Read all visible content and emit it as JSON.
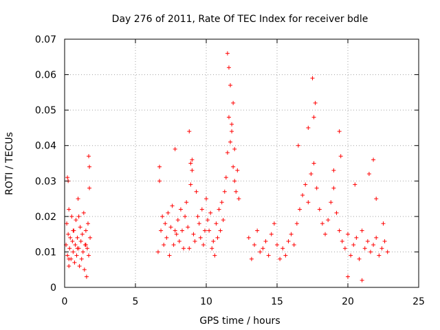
{
  "chart_data": {
    "type": "scatter",
    "title": "Day 276 of 2011, Rate Of TEC Index for receiver bdle",
    "xlabel": "GPS time / hours",
    "ylabel": "ROTI / TECUs",
    "xlim": [
      0,
      25
    ],
    "ylim": [
      0,
      0.07
    ],
    "xticks": [
      "0",
      "5",
      "10",
      "15",
      "20",
      "25"
    ],
    "yticks": [
      "0",
      "0.01",
      "0.02",
      "0.03",
      "0.04",
      "0.05",
      "0.06",
      "0.07"
    ],
    "grid": true,
    "marker": "+",
    "marker_color": "#ff0000",
    "series": [
      {
        "values_note": "",
        "x": [
          0.1,
          0.15,
          0.2,
          0.2,
          0.25,
          0.3,
          0.3,
          0.35,
          0.4,
          0.45,
          0.5,
          0.55,
          0.6,
          0.65,
          0.7,
          0.75,
          0.8,
          0.85,
          0.9,
          0.95,
          1.0,
          1.05,
          1.1,
          1.15,
          1.2,
          1.25,
          1.3,
          1.35,
          1.4,
          1.45,
          1.5,
          1.55,
          1.6,
          1.65,
          1.7,
          1.75,
          1.8,
          1.7,
          1.75,
          0.25,
          0.3,
          0.6,
          0.9,
          1.0,
          1.5,
          6.6,
          6.7,
          6.8,
          6.9,
          7.0,
          7.1,
          7.2,
          7.3,
          7.4,
          7.5,
          7.6,
          7.7,
          7.8,
          7.9,
          8.0,
          8.1,
          8.2,
          8.3,
          8.4,
          8.5,
          8.6,
          8.7,
          8.8,
          8.9,
          9.0,
          9.1,
          9.2,
          9.3,
          9.4,
          9.5,
          9.6,
          9.7,
          9.8,
          9.9,
          10.0,
          10.1,
          10.2,
          10.3,
          10.4,
          10.5,
          10.6,
          10.7,
          10.8,
          10.9,
          11.0,
          11.1,
          11.2,
          11.3,
          11.4,
          11.5,
          11.6,
          11.7,
          11.8,
          11.9,
          12.0,
          12.1,
          12.2,
          12.3,
          6.7,
          7.8,
          8.8,
          8.9,
          9.0,
          11.5,
          11.7,
          11.9,
          12.0,
          11.6,
          11.8,
          13.0,
          13.2,
          13.4,
          13.6,
          13.8,
          14.0,
          14.2,
          14.4,
          14.6,
          14.8,
          15.0,
          15.2,
          15.4,
          15.6,
          15.8,
          16.0,
          16.2,
          16.4,
          16.6,
          16.8,
          17.0,
          17.2,
          17.4,
          17.6,
          17.8,
          18.0,
          18.2,
          18.4,
          18.6,
          18.8,
          19.0,
          19.2,
          19.4,
          19.6,
          19.8,
          20.0,
          20.2,
          20.4,
          20.6,
          20.8,
          21.0,
          21.2,
          21.4,
          21.6,
          21.8,
          22.0,
          22.2,
          22.4,
          22.6,
          22.8,
          17.5,
          17.7,
          17.6,
          17.2,
          19.4,
          19.5,
          21.8,
          21.5,
          20.5,
          22.0,
          22.5,
          20.0,
          21.0,
          19.0,
          16.5
        ],
        "y": [
          0.012,
          0.018,
          0.009,
          0.031,
          0.015,
          0.006,
          0.022,
          0.011,
          0.014,
          0.008,
          0.02,
          0.013,
          0.01,
          0.016,
          0.007,
          0.012,
          0.019,
          0.009,
          0.014,
          0.025,
          0.011,
          0.006,
          0.017,
          0.013,
          0.008,
          0.015,
          0.01,
          0.021,
          0.005,
          0.012,
          0.016,
          0.003,
          0.011,
          0.018,
          0.009,
          0.028,
          0.014,
          0.037,
          0.034,
          0.03,
          0.008,
          0.016,
          0.011,
          0.02,
          0.012,
          0.01,
          0.034,
          0.016,
          0.02,
          0.012,
          0.018,
          0.014,
          0.021,
          0.009,
          0.017,
          0.023,
          0.012,
          0.039,
          0.015,
          0.019,
          0.013,
          0.022,
          0.016,
          0.011,
          0.02,
          0.024,
          0.017,
          0.044,
          0.029,
          0.036,
          0.015,
          0.013,
          0.027,
          0.02,
          0.018,
          0.014,
          0.022,
          0.012,
          0.016,
          0.025,
          0.019,
          0.016,
          0.021,
          0.011,
          0.013,
          0.009,
          0.018,
          0.014,
          0.022,
          0.016,
          0.024,
          0.019,
          0.027,
          0.031,
          0.038,
          0.048,
          0.041,
          0.046,
          0.034,
          0.03,
          0.027,
          0.033,
          0.025,
          0.03,
          0.016,
          0.011,
          0.035,
          0.033,
          0.066,
          0.057,
          0.052,
          0.039,
          0.062,
          0.044,
          0.014,
          0.008,
          0.012,
          0.016,
          0.01,
          0.011,
          0.013,
          0.009,
          0.015,
          0.018,
          0.012,
          0.008,
          0.011,
          0.009,
          0.013,
          0.015,
          0.012,
          0.018,
          0.022,
          0.026,
          0.029,
          0.024,
          0.032,
          0.035,
          0.028,
          0.022,
          0.018,
          0.015,
          0.019,
          0.024,
          0.028,
          0.021,
          0.016,
          0.013,
          0.011,
          0.015,
          0.009,
          0.012,
          0.014,
          0.008,
          0.016,
          0.011,
          0.013,
          0.01,
          0.012,
          0.014,
          0.009,
          0.011,
          0.013,
          0.01,
          0.059,
          0.052,
          0.048,
          0.045,
          0.044,
          0.037,
          0.036,
          0.032,
          0.029,
          0.025,
          0.018,
          0.003,
          0.002,
          0.033,
          0.04
        ]
      }
    ]
  }
}
